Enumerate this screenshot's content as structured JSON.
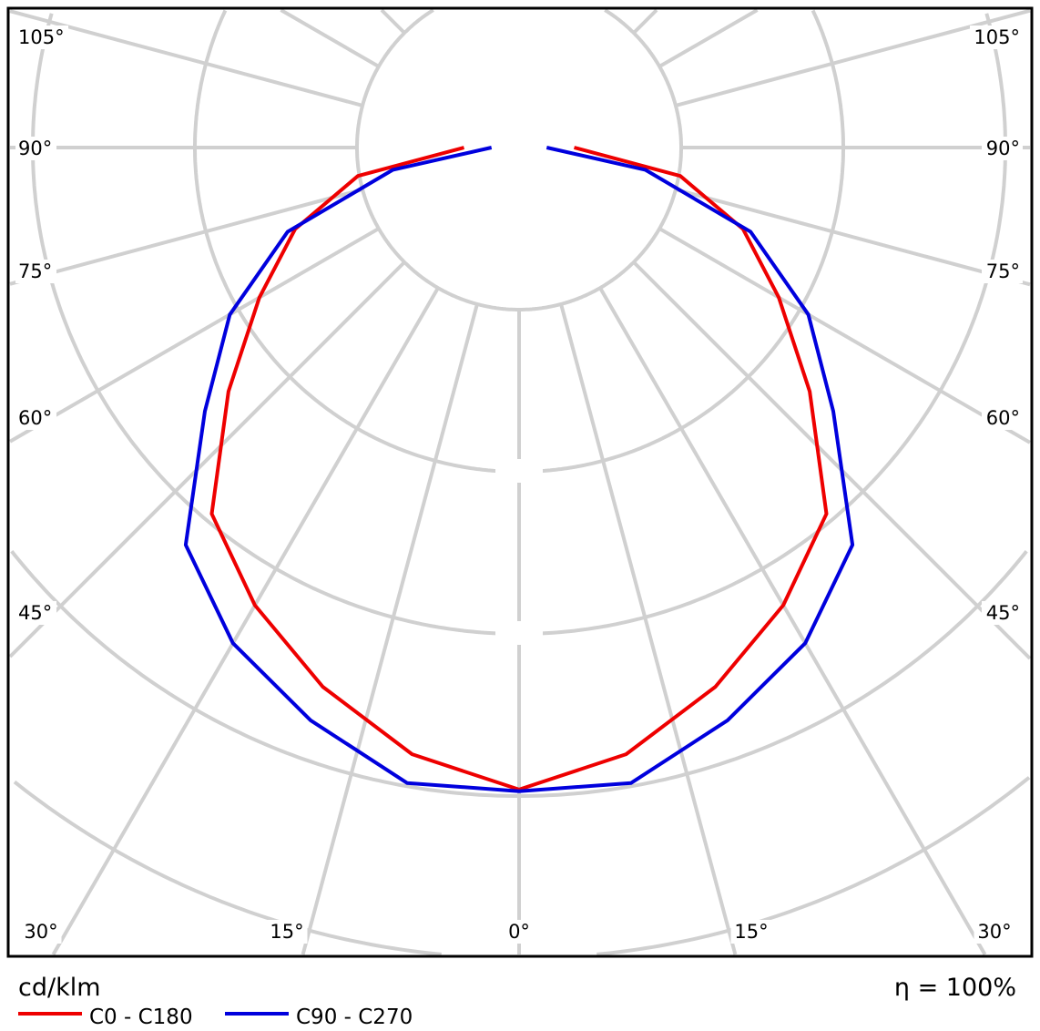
{
  "chart_data": {
    "type": "polar-line",
    "unit_label": "cd/klm",
    "efficiency_label": "η = 100%",
    "angle_labels": {
      "left": [
        "105°",
        "90°",
        "75°",
        "60°",
        "45°"
      ],
      "right": [
        "105°",
        "90°",
        "75°",
        "60°",
        "45°"
      ],
      "bottom": [
        "30°",
        "15°",
        "0°",
        "15°",
        "30°"
      ]
    },
    "angles_deg": [
      0,
      10,
      20,
      30,
      40,
      50,
      60,
      70,
      80,
      90
    ],
    "radial_unit_note": "values in grid-ring units (ring values not printed)",
    "rings": [
      1,
      2,
      3,
      4,
      5
    ],
    "grid": true,
    "legend_position": "bottom-left",
    "series": [
      {
        "name": "C0 - C180",
        "color": "#ee0000",
        "values": [
          3.96,
          3.8,
          3.54,
          3.26,
          2.95,
          2.34,
          1.85,
          1.47,
          1.01,
          0.34
        ]
      },
      {
        "name": "C90 - C270",
        "color": "#0000dd",
        "values": [
          3.97,
          3.98,
          3.76,
          3.53,
          3.2,
          2.53,
          2.06,
          1.52,
          0.79,
          0.17
        ]
      }
    ]
  }
}
